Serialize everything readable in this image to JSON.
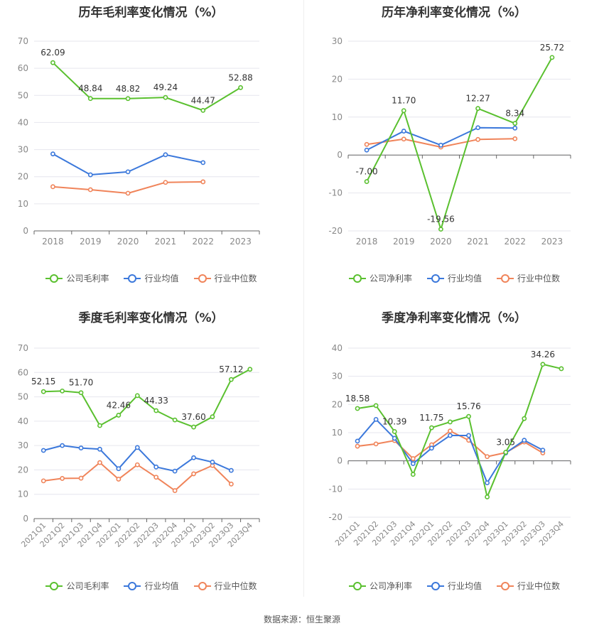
{
  "source": "数据来源：恒生聚源",
  "colors": {
    "company": "#5ac02f",
    "average": "#3b78db",
    "median": "#f0845a"
  },
  "legend_icon": "circle-line-icon",
  "chart_data": [
    {
      "id": "annual-gross",
      "type": "line",
      "title": "历年毛利率变化情况（%）",
      "categories": [
        "2018",
        "2019",
        "2020",
        "2021",
        "2022",
        "2023"
      ],
      "ylim": [
        0,
        70
      ],
      "yticks": [
        "0",
        "10",
        "20",
        "30",
        "40",
        "50",
        "60",
        "70"
      ],
      "grid": true,
      "legend_placement": "bottom",
      "series": [
        {
          "name": "公司毛利率",
          "key": "company",
          "values": [
            62.09,
            48.84,
            48.82,
            49.24,
            44.47,
            52.88
          ],
          "labels": [
            "62.09",
            "48.84",
            "48.82",
            "49.24",
            "44.47",
            "52.88"
          ]
        },
        {
          "name": "行业均值",
          "key": "average",
          "values": [
            28.4,
            20.7,
            21.8,
            28.1,
            25.2,
            null
          ]
        },
        {
          "name": "行业中位数",
          "key": "median",
          "values": [
            16.3,
            15.2,
            13.9,
            17.9,
            18.1,
            null
          ]
        }
      ]
    },
    {
      "id": "annual-net",
      "type": "line",
      "title": "历年净利率变化情况（%）",
      "categories": [
        "2018",
        "2019",
        "2020",
        "2021",
        "2022",
        "2023"
      ],
      "ylim": [
        -20,
        30
      ],
      "yticks": [
        "-20",
        "-10",
        "0",
        "10",
        "20",
        "30"
      ],
      "grid": true,
      "legend_placement": "bottom",
      "series": [
        {
          "name": "公司净利率",
          "key": "company",
          "values": [
            -7.0,
            11.7,
            -19.56,
            12.27,
            8.34,
            25.72
          ],
          "labels": [
            "-7.00",
            "11.70",
            "-19.56",
            "12.27",
            "8.34",
            "25.72"
          ]
        },
        {
          "name": "行业均值",
          "key": "average",
          "values": [
            1.3,
            6.3,
            2.6,
            7.2,
            7.1,
            null
          ]
        },
        {
          "name": "行业中位数",
          "key": "median",
          "values": [
            2.8,
            4.2,
            2.1,
            4.1,
            4.3,
            null
          ]
        }
      ]
    },
    {
      "id": "quarterly-gross",
      "type": "line",
      "title": "季度毛利率变化情况（%）",
      "categories": [
        "2021Q1",
        "2021Q2",
        "2021Q3",
        "2021Q4",
        "2022Q1",
        "2022Q2",
        "2022Q3",
        "2022Q4",
        "2023Q1",
        "2023Q2",
        "2023Q3",
        "2023Q4"
      ],
      "ylim": [
        0,
        70
      ],
      "yticks": [
        "0",
        "10",
        "20",
        "30",
        "40",
        "50",
        "60",
        "70"
      ],
      "grid": true,
      "legend_placement": "bottom",
      "series": [
        {
          "name": "公司毛利率",
          "key": "company",
          "values": [
            52.15,
            52.4,
            51.7,
            38.2,
            42.46,
            50.5,
            44.33,
            40.5,
            37.6,
            41.8,
            57.12,
            61.3
          ],
          "labels": [
            "52.15",
            "",
            "51.70",
            "",
            "42.46",
            "",
            "44.33",
            "",
            "37.60",
            "",
            "57.12",
            ""
          ]
        },
        {
          "name": "行业均值",
          "key": "average",
          "values": [
            28.0,
            30.0,
            29.0,
            28.5,
            20.5,
            29.2,
            21.2,
            19.5,
            25.0,
            23.2,
            19.8,
            null
          ]
        },
        {
          "name": "行业中位数",
          "key": "median",
          "values": [
            15.5,
            16.5,
            16.6,
            23.0,
            16.2,
            22.1,
            17.0,
            11.5,
            18.4,
            21.8,
            14.2,
            null
          ]
        }
      ]
    },
    {
      "id": "quarterly-net",
      "type": "line",
      "title": "季度净利率变化情况（%）",
      "categories": [
        "2021Q1",
        "2021Q2",
        "2021Q3",
        "2021Q4",
        "2022Q1",
        "2022Q2",
        "2022Q3",
        "2022Q4",
        "2023Q1",
        "2023Q2",
        "2023Q3",
        "2023Q4"
      ],
      "ylim": [
        -20,
        40
      ],
      "yticks": [
        "-20",
        "-10",
        "0",
        "10",
        "20",
        "30",
        "40"
      ],
      "grid": true,
      "legend_placement": "bottom",
      "series": [
        {
          "name": "公司净利率",
          "key": "company",
          "values": [
            18.58,
            19.6,
            10.39,
            -4.8,
            11.75,
            13.8,
            15.76,
            -12.8,
            3.05,
            15.0,
            34.26,
            32.7
          ],
          "labels": [
            "18.58",
            "",
            "10.39",
            "",
            "11.75",
            "",
            "15.76",
            "",
            "3.05",
            "",
            "34.26",
            ""
          ]
        },
        {
          "name": "行业均值",
          "key": "average",
          "values": [
            7.0,
            14.7,
            8.0,
            -1.0,
            4.5,
            9.0,
            9.0,
            -7.8,
            2.8,
            7.3,
            3.8,
            null
          ]
        },
        {
          "name": "行业中位数",
          "key": "median",
          "values": [
            5.2,
            6.0,
            7.2,
            0.8,
            5.7,
            10.6,
            7.3,
            1.5,
            2.9,
            6.7,
            2.8,
            null
          ]
        }
      ]
    }
  ]
}
